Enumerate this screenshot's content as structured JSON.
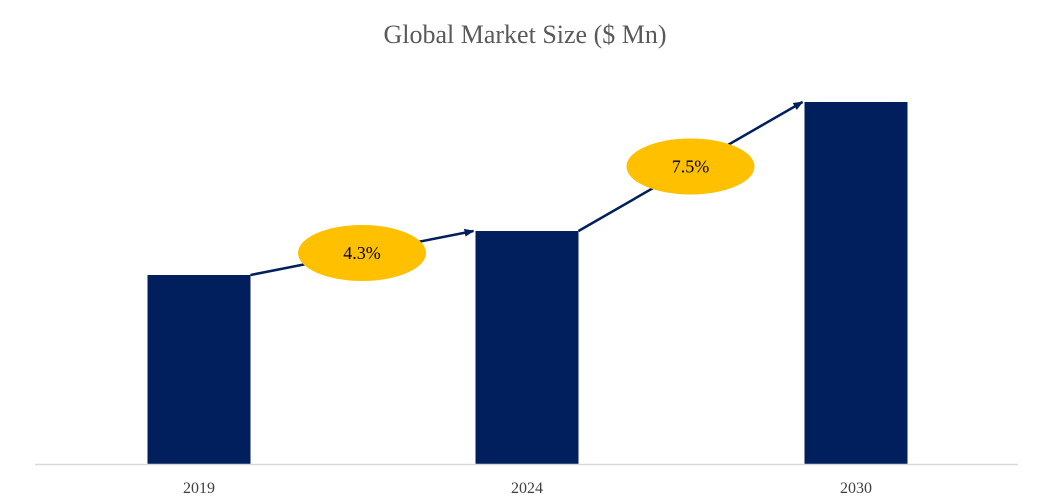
{
  "chart_data": {
    "type": "bar",
    "title": "Global Market Size ($ Mn)",
    "categories": [
      "2019",
      "2024",
      "2030"
    ],
    "values": [
      189,
      233,
      362
    ],
    "ylim": [
      0,
      400
    ],
    "xlabel": "",
    "ylabel": "",
    "grid": false,
    "bar_color": "#001F5C",
    "annotations": [
      {
        "label": "4.3%",
        "from": "2019",
        "to": "2024",
        "color": "#FFC000"
      },
      {
        "label": "7.5%",
        "from": "2024",
        "to": "2030",
        "color": "#FFC000"
      }
    ],
    "arrow_color": "#001F5C",
    "axis_color": "#D9D9D9"
  }
}
